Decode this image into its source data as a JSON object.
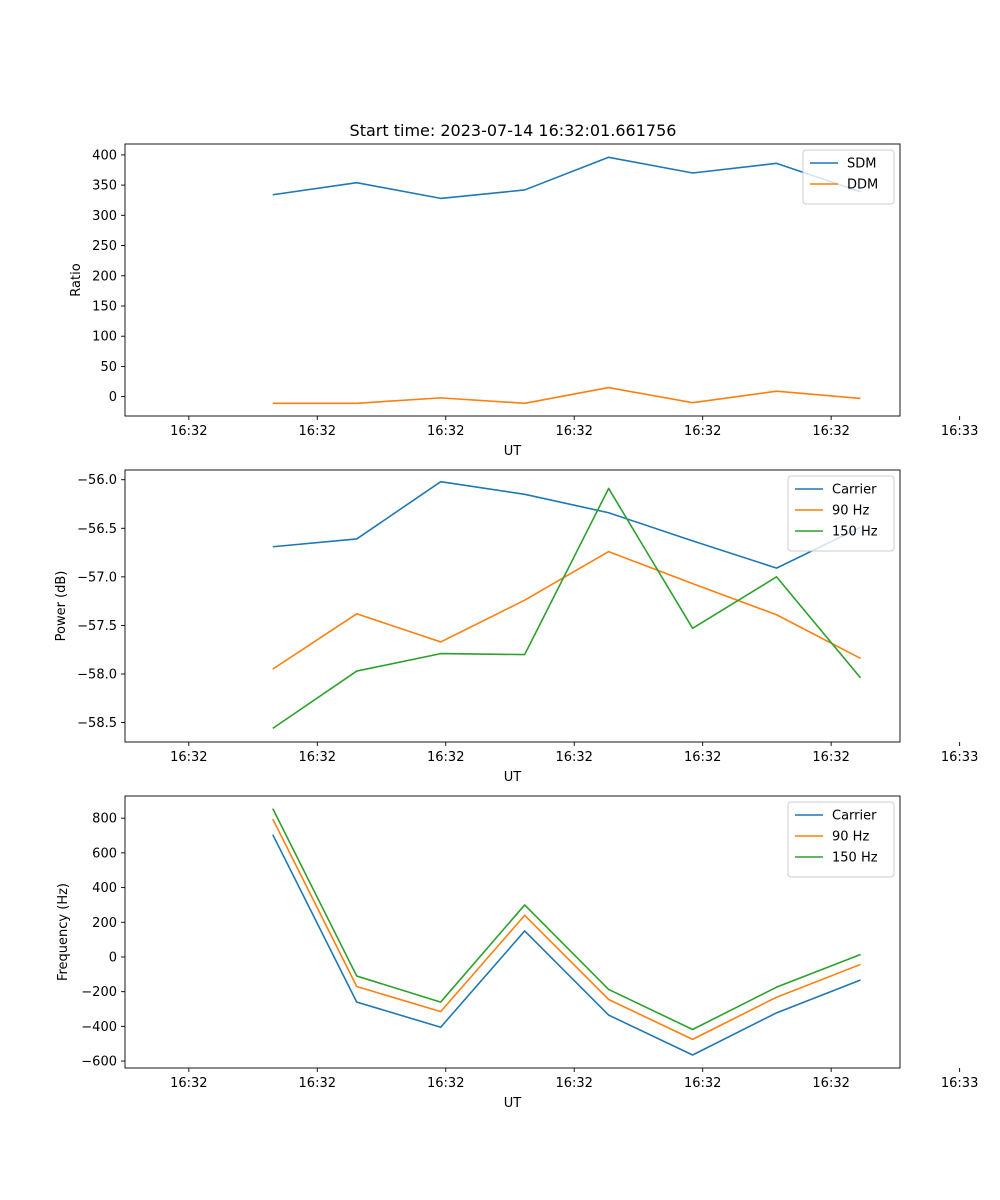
{
  "figure": {
    "title": "Start time: 2023-07-14 16:32:01.661756",
    "colors": {
      "blue": "#1f77b4",
      "orange": "#ff7f0e",
      "green": "#2ca02c"
    }
  },
  "chart_data": [
    {
      "type": "line",
      "name": "ratio",
      "title": "Start time: 2023-07-14 16:32:01.661756",
      "xlabel": "UT",
      "ylabel": "Ratio",
      "x": [
        1,
        2,
        3,
        4,
        5,
        6,
        7,
        8
      ],
      "xlim": [
        -0.76,
        8.47
      ],
      "ylim": [
        -32,
        418
      ],
      "xticks": [
        0,
        1.53,
        3.06,
        4.59,
        6.12,
        7.65,
        9.18
      ],
      "xtick_labels": [
        "16:32",
        "16:32",
        "16:32",
        "16:32",
        "16:32",
        "16:32",
        "16:33"
      ],
      "yticks": [
        0,
        50,
        100,
        150,
        200,
        250,
        300,
        350,
        400
      ],
      "ytick_labels": [
        "0",
        "50",
        "100",
        "150",
        "200",
        "250",
        "300",
        "350",
        "400"
      ],
      "legend": "top-right",
      "series": [
        {
          "name": "SDM",
          "color": "#1f77b4",
          "values": [
            334,
            354,
            328,
            342,
            396,
            370,
            386,
            339
          ]
        },
        {
          "name": "DDM",
          "color": "#ff7f0e",
          "values": [
            -11,
            -11,
            -2,
            -11,
            15,
            -10,
            9,
            -3
          ]
        }
      ]
    },
    {
      "type": "line",
      "name": "power",
      "xlabel": "UT",
      "ylabel": "Power (dB)",
      "x": [
        1,
        2,
        3,
        4,
        5,
        6,
        7,
        8
      ],
      "xlim": [
        -0.76,
        8.47
      ],
      "ylim": [
        -58.7,
        -55.9
      ],
      "xticks": [
        0,
        1.53,
        3.06,
        4.59,
        6.12,
        7.65,
        9.18
      ],
      "xtick_labels": [
        "16:32",
        "16:32",
        "16:32",
        "16:32",
        "16:32",
        "16:32",
        "16:33"
      ],
      "yticks": [
        -58.5,
        -58.0,
        -57.5,
        -57.0,
        -56.5,
        -56.0
      ],
      "ytick_labels": [
        "−58.5",
        "−58.0",
        "−57.5",
        "−57.0",
        "−56.5",
        "−56.0"
      ],
      "legend": "top-right",
      "series": [
        {
          "name": "Carrier",
          "color": "#1f77b4",
          "values": [
            -56.69,
            -56.61,
            -56.02,
            -56.15,
            -56.34,
            -56.63,
            -56.91,
            -56.49
          ]
        },
        {
          "name": "90 Hz",
          "color": "#ff7f0e",
          "values": [
            -57.95,
            -57.38,
            -57.67,
            -57.24,
            -56.74,
            -57.07,
            -57.39,
            -57.84
          ]
        },
        {
          "name": "150 Hz",
          "color": "#2ca02c",
          "values": [
            -58.56,
            -57.97,
            -57.79,
            -57.8,
            -56.09,
            -57.53,
            -57.0,
            -58.04
          ]
        }
      ]
    },
    {
      "type": "line",
      "name": "frequency",
      "xlabel": "UT",
      "ylabel": "Frequency (Hz)",
      "x": [
        1,
        2,
        3,
        4,
        5,
        6,
        7,
        8
      ],
      "xlim": [
        -0.76,
        8.47
      ],
      "ylim": [
        -640,
        928
      ],
      "xticks": [
        0,
        1.53,
        3.06,
        4.59,
        6.12,
        7.65,
        9.18
      ],
      "xtick_labels": [
        "16:32",
        "16:32",
        "16:32",
        "16:32",
        "16:32",
        "16:32",
        "16:33"
      ],
      "yticks": [
        -600,
        -400,
        -200,
        0,
        200,
        400,
        600,
        800
      ],
      "ytick_labels": [
        "−600",
        "−400",
        "−200",
        "0",
        "200",
        "400",
        "600",
        "800"
      ],
      "legend": "top-right",
      "series": [
        {
          "name": "Carrier",
          "color": "#1f77b4",
          "values": [
            705,
            -260,
            -405,
            150,
            -335,
            -565,
            -322,
            -133
          ]
        },
        {
          "name": "90 Hz",
          "color": "#ff7f0e",
          "values": [
            795,
            -170,
            -315,
            240,
            -245,
            -475,
            -232,
            -43
          ]
        },
        {
          "name": "150 Hz",
          "color": "#2ca02c",
          "values": [
            855,
            -110,
            -260,
            300,
            -187,
            -418,
            -174,
            14
          ]
        }
      ]
    }
  ]
}
